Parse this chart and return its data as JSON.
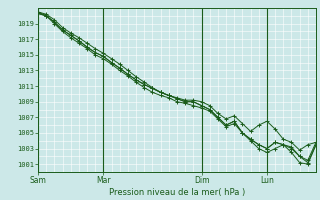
{
  "title": "",
  "xlabel": "Pression niveau de la mer( hPa )",
  "ylabel": "",
  "bg_color": "#cce8e8",
  "grid_color": "#ffffff",
  "line_color": "#1a5c1a",
  "ylim": [
    1000,
    1021
  ],
  "yticks": [
    1001,
    1003,
    1005,
    1007,
    1009,
    1011,
    1013,
    1015,
    1017,
    1019
  ],
  "day_labels": [
    "Sam",
    "Mar",
    "Dim",
    "Lun"
  ],
  "day_positions": [
    0,
    48,
    120,
    168
  ],
  "total_hours": 204,
  "series": [
    [
      0,
      1020.5,
      6,
      1020.0,
      12,
      1019.2,
      18,
      1018.2,
      24,
      1017.5,
      30,
      1016.8,
      36,
      1016.0,
      42,
      1015.3,
      48,
      1014.8,
      54,
      1014.0,
      60,
      1013.3,
      66,
      1012.5,
      72,
      1011.8,
      78,
      1011.2,
      84,
      1010.7,
      90,
      1010.2,
      96,
      1009.8,
      102,
      1009.4,
      108,
      1009.0,
      114,
      1009.0,
      120,
      1008.5,
      126,
      1008.0,
      132,
      1007.0,
      138,
      1006.0,
      144,
      1006.5,
      150,
      1005.0,
      156,
      1004.2,
      162,
      1003.5,
      168,
      1003.0,
      174,
      1003.8,
      180,
      1003.5,
      186,
      1002.5,
      192,
      1001.2,
      198,
      1001.0,
      204,
      1003.5
    ],
    [
      0,
      1020.5,
      6,
      1020.2,
      12,
      1019.5,
      18,
      1018.5,
      24,
      1017.8,
      30,
      1017.2,
      36,
      1016.5,
      42,
      1015.8,
      48,
      1015.2,
      54,
      1014.5,
      60,
      1013.8,
      66,
      1013.0,
      72,
      1012.2,
      78,
      1011.5,
      84,
      1010.8,
      90,
      1010.2,
      96,
      1009.8,
      102,
      1009.5,
      108,
      1009.2,
      114,
      1009.2,
      120,
      1009.0,
      126,
      1008.5,
      132,
      1007.5,
      138,
      1006.8,
      144,
      1007.2,
      150,
      1006.2,
      156,
      1005.2,
      162,
      1006.0,
      168,
      1006.5,
      174,
      1005.5,
      180,
      1004.2,
      186,
      1003.8,
      192,
      1002.8,
      198,
      1003.5,
      204,
      1003.8
    ],
    [
      0,
      1020.3,
      6,
      1020.0,
      12,
      1019.2,
      18,
      1018.2,
      24,
      1017.5,
      30,
      1016.8,
      36,
      1016.0,
      42,
      1015.3,
      48,
      1014.8,
      54,
      1014.0,
      60,
      1013.3,
      66,
      1012.5,
      72,
      1011.8,
      78,
      1011.2,
      84,
      1010.7,
      90,
      1010.2,
      96,
      1009.8,
      102,
      1009.4,
      108,
      1009.0,
      114,
      1009.0,
      120,
      1008.5,
      126,
      1008.0,
      132,
      1007.0,
      138,
      1006.0,
      144,
      1006.5,
      150,
      1005.0,
      156,
      1004.2,
      162,
      1003.5,
      168,
      1003.0,
      174,
      1003.8,
      180,
      1003.5,
      186,
      1003.0,
      192,
      1002.0,
      198,
      1001.5,
      204,
      1003.8
    ],
    [
      0,
      1020.3,
      6,
      1020.0,
      12,
      1019.0,
      18,
      1018.0,
      24,
      1017.2,
      30,
      1016.5,
      36,
      1015.8,
      42,
      1015.0,
      48,
      1014.5,
      54,
      1013.8,
      60,
      1013.0,
      66,
      1012.3,
      72,
      1011.5,
      78,
      1010.8,
      84,
      1010.2,
      90,
      1009.8,
      96,
      1009.5,
      102,
      1009.0,
      108,
      1008.8,
      114,
      1008.5,
      120,
      1008.2,
      126,
      1007.8,
      132,
      1006.8,
      138,
      1005.8,
      144,
      1006.2,
      150,
      1005.0,
      156,
      1004.0,
      162,
      1003.0,
      168,
      1002.5,
      174,
      1003.0,
      180,
      1003.5,
      186,
      1003.2,
      192,
      1002.0,
      198,
      1001.2,
      204,
      1003.5
    ]
  ]
}
